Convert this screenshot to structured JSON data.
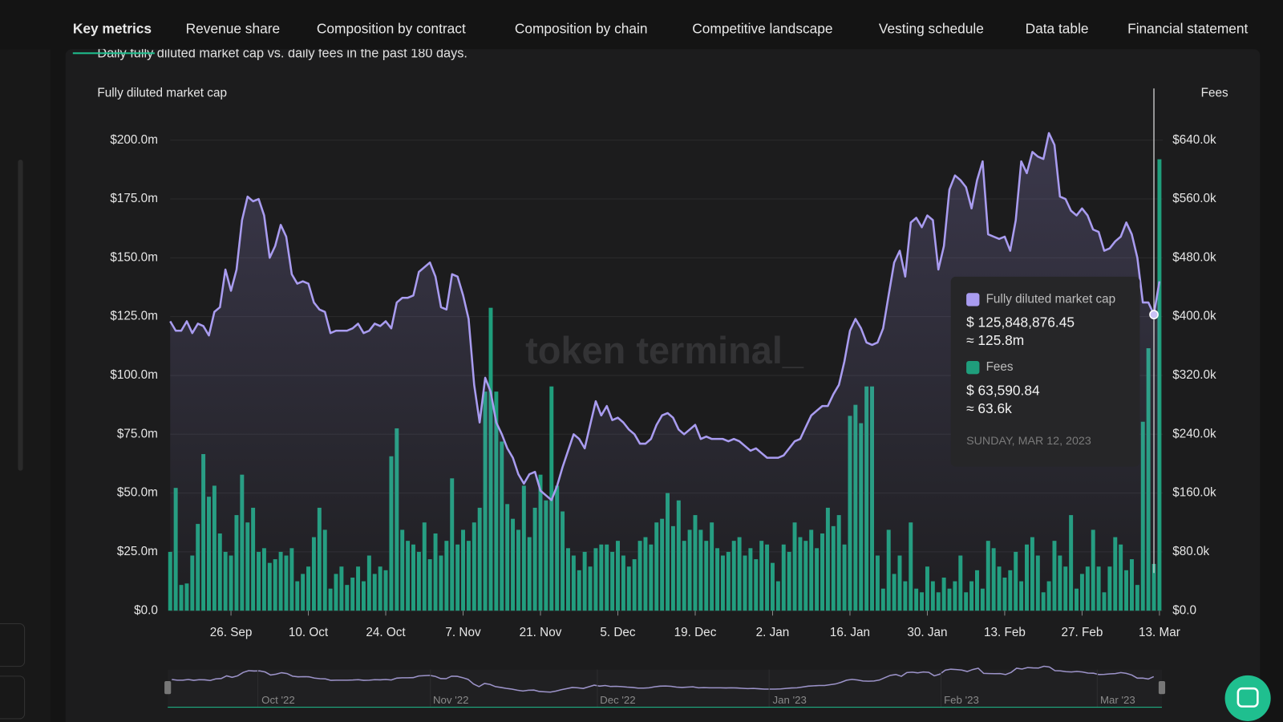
{
  "tabs": [
    "Key metrics",
    "Revenue share",
    "Composition by contract",
    "Composition by chain",
    "Competitive landscape",
    "Vesting schedule",
    "Data table",
    "Financial statement"
  ],
  "active_tab": 0,
  "chart_data": {
    "type": "bar-line",
    "subtitle": "Daily fully diluted market cap vs. daily fees in the past 180 days.",
    "watermark": "token terminal_",
    "y_label": "Fully diluted market cap",
    "y2_label": "Fees",
    "categories": [
      null,
      null,
      null,
      null,
      null,
      null,
      null,
      null,
      null,
      null,
      null,
      "26. Sep",
      null,
      null,
      null,
      null,
      null,
      null,
      null,
      null,
      null,
      null,
      null,
      null,
      null,
      "10. Oct",
      null,
      null,
      null,
      null,
      null,
      null,
      null,
      null,
      null,
      null,
      null,
      null,
      null,
      "24. Oct",
      null,
      null,
      null,
      null,
      null,
      null,
      null,
      null,
      null,
      null,
      null,
      null,
      null,
      "7. Nov",
      null,
      null,
      null,
      null,
      null,
      null,
      null,
      null,
      null,
      null,
      null,
      null,
      null,
      "21. Nov",
      null,
      null,
      null,
      null,
      null,
      null,
      null,
      null,
      null,
      null,
      null,
      null,
      null,
      "5. Dec",
      null,
      null,
      null,
      null,
      null,
      null,
      null,
      null,
      null,
      null,
      null,
      null,
      null,
      "19. Dec",
      null,
      null,
      null,
      null,
      null,
      null,
      null,
      null,
      null,
      null,
      null,
      null,
      null,
      "2. Jan",
      null,
      null,
      null,
      null,
      null,
      null,
      null,
      null,
      null,
      null,
      null,
      null,
      null,
      "16. Jan",
      null,
      null,
      null,
      null,
      null,
      null,
      null,
      null,
      null,
      null,
      null,
      null,
      null,
      "30. Jan",
      null,
      null,
      null,
      null,
      null,
      null,
      null,
      null,
      null,
      null,
      null,
      null,
      null,
      "13. Feb",
      null,
      null,
      null,
      null,
      null,
      null,
      null,
      null,
      null,
      null,
      null,
      null,
      null,
      "27. Feb",
      null,
      null,
      null,
      null,
      null,
      null,
      null,
      null,
      null,
      null,
      null,
      null,
      null,
      "13. Mar"
    ],
    "series": [
      {
        "name": "Fully diluted market cap",
        "kind": "line",
        "color": "#a99cf0",
        "axis": "y",
        "values": [
          123,
          119,
          119,
          123,
          118,
          122,
          121,
          117,
          127,
          129,
          145,
          136,
          145,
          166,
          176,
          174,
          175,
          168,
          150,
          155,
          164,
          159,
          143,
          139,
          140,
          139,
          131,
          128,
          127,
          118,
          119,
          119,
          119,
          120,
          122,
          118,
          119,
          122,
          121,
          123,
          120,
          131,
          133,
          133,
          134,
          144,
          146,
          148,
          142,
          129,
          128,
          143,
          142,
          134,
          124,
          96,
          80,
          99,
          93,
          80,
          75,
          69,
          65,
          58,
          54,
          58,
          59,
          51,
          49,
          47,
          53,
          61,
          68,
          75,
          73,
          69,
          79,
          89,
          83,
          87,
          81,
          82,
          80,
          77,
          75,
          71,
          71,
          73,
          79,
          83,
          84,
          82,
          77,
          75,
          77,
          79,
          73,
          74,
          73,
          73,
          73,
          72,
          73,
          72,
          70,
          68,
          69,
          67,
          65,
          65,
          65,
          66,
          69,
          72,
          73,
          78,
          83,
          85,
          87,
          87,
          92,
          96,
          106,
          119,
          124,
          120,
          114,
          113,
          114,
          120,
          134,
          148,
          153,
          142,
          165,
          167,
          163,
          168,
          166,
          145,
          155,
          179,
          185,
          183,
          180,
          171,
          183,
          191,
          160,
          159,
          158,
          159,
          153,
          166,
          191,
          186,
          195,
          193,
          192,
          203,
          198,
          176,
          175,
          170,
          168,
          171,
          168,
          162,
          161,
          153,
          154,
          157,
          159,
          165,
          160,
          150,
          131,
          131,
          125.84887645,
          140
        ]
      },
      {
        "name": "Fees",
        "kind": "bar",
        "color": "#1f9e7c",
        "axis": "y2",
        "values": [
          80,
          167,
          35,
          37,
          75,
          118,
          213,
          155,
          170,
          105,
          80,
          75,
          130,
          185,
          120,
          140,
          80,
          85,
          65,
          70,
          80,
          75,
          85,
          40,
          50,
          60,
          100,
          140,
          110,
          30,
          50,
          60,
          35,
          45,
          60,
          40,
          75,
          50,
          60,
          55,
          210,
          248,
          110,
          95,
          90,
          80,
          120,
          70,
          105,
          75,
          95,
          180,
          90,
          110,
          95,
          120,
          140,
          298,
          412,
          298,
          230,
          145,
          125,
          110,
          170,
          100,
          140,
          185,
          150,
          305,
          170,
          135,
          85,
          75,
          55,
          80,
          60,
          85,
          90,
          90,
          80,
          95,
          75,
          60,
          70,
          95,
          100,
          90,
          120,
          125,
          160,
          115,
          150,
          95,
          110,
          130,
          110,
          95,
          120,
          85,
          75,
          80,
          95,
          100,
          75,
          85,
          70,
          95,
          90,
          65,
          40,
          90,
          80,
          120,
          100,
          95,
          110,
          85,
          105,
          140,
          115,
          130,
          90,
          265,
          280,
          255,
          305,
          305,
          75,
          30,
          110,
          50,
          75,
          40,
          120,
          30,
          25,
          60,
          40,
          25,
          45,
          30,
          40,
          75,
          25,
          40,
          55,
          30,
          95,
          85,
          60,
          45,
          55,
          80,
          40,
          90,
          100,
          75,
          25,
          40,
          95,
          75,
          60,
          130,
          30,
          50,
          60,
          110,
          60,
          25,
          60,
          100,
          90,
          55,
          70,
          35,
          257,
          357,
          63.59084,
          614
        ]
      }
    ],
    "ylim": [
      0,
      222
    ],
    "yticks": [
      {
        "value": 0,
        "label": "$0.0"
      },
      {
        "value": 25,
        "label": "$25.0m"
      },
      {
        "value": 50,
        "label": "$50.0m"
      },
      {
        "value": 75,
        "label": "$75.0m"
      },
      {
        "value": 100,
        "label": "$100.0m"
      },
      {
        "value": 125,
        "label": "$125.0m"
      },
      {
        "value": 150,
        "label": "$150.0m"
      },
      {
        "value": 175,
        "label": "$175.0m"
      },
      {
        "value": 200,
        "label": "$200.0m"
      }
    ],
    "y2lim": [
      0,
      710.4
    ],
    "y2ticks": [
      {
        "value": 0,
        "label": "$0.0"
      },
      {
        "value": 80,
        "label": "$80.0k"
      },
      {
        "value": 160,
        "label": "$160.0k"
      },
      {
        "value": 240,
        "label": "$240.0k"
      },
      {
        "value": 320,
        "label": "$320.0k"
      },
      {
        "value": 400,
        "label": "$400.0k"
      },
      {
        "value": 480,
        "label": "$480.0k"
      },
      {
        "value": 560,
        "label": "$560.0k"
      },
      {
        "value": 640,
        "label": "$640.0k"
      }
    ],
    "grid": true,
    "tooltip": {
      "index": 178,
      "date": "SUNDAY, MAR 12, 2023",
      "rows": [
        {
          "value": "$ 125,848,876.45",
          "approx": "≈ 125.8m"
        },
        {
          "value": "$ 63,590.84",
          "approx": "≈ 63.6k"
        }
      ]
    },
    "navigator": {
      "labels": [
        "Oct '22",
        "Nov '22",
        "Dec '22",
        "Jan '23",
        "Feb '23",
        "Mar '23"
      ]
    }
  }
}
